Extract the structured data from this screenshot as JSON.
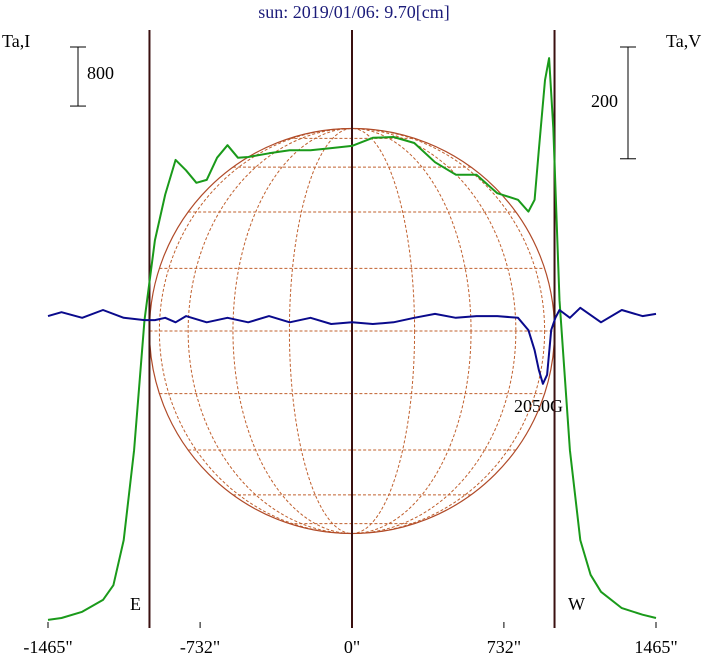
{
  "chart_data": {
    "type": "line",
    "title": "sun: 2019/01/06: 9.70[cm]",
    "ylabel": "Ta,I",
    "y2label": "Ta,V",
    "xlim": [
      -1465,
      1465
    ],
    "xticks": [
      {
        "value": -1465,
        "label": "-1465\""
      },
      {
        "value": -732,
        "label": "-732\""
      },
      {
        "value": 0,
        "label": "0\""
      },
      {
        "value": 732,
        "label": "732\""
      },
      {
        "value": 1465,
        "label": "1465\""
      }
    ],
    "ylim": [
      -100,
      8000
    ],
    "y2lim": [
      -560,
      510
    ],
    "scale_bars": [
      {
        "value": 800,
        "axis": "y"
      },
      {
        "value": 200,
        "axis": "y2"
      }
    ],
    "limbs": [
      {
        "x": -976,
        "label": "E"
      },
      {
        "x": 976,
        "label": "W"
      }
    ],
    "annotation": "2050G",
    "series": [
      {
        "color": "#1a9a1a",
        "axis": "y",
        "x": [
          -1465,
          -1400,
          -1300,
          -1200,
          -1150,
          -1100,
          -1050,
          -1000,
          -950,
          -900,
          -850,
          -800,
          -750,
          -700,
          -650,
          -600,
          -550,
          -500,
          -400,
          -300,
          -200,
          -100,
          0,
          100,
          200,
          300,
          400,
          500,
          600,
          700,
          800,
          850,
          880,
          900,
          930,
          950,
          970,
          1000,
          1050,
          1100,
          1150,
          1200,
          1300,
          1400,
          1465
        ],
        "values": [
          10,
          35,
          120,
          280,
          480,
          1090,
          2310,
          4070,
          5150,
          5770,
          6240,
          6100,
          5930,
          5970,
          6270,
          6440,
          6270,
          6280,
          6330,
          6370,
          6370,
          6400,
          6430,
          6540,
          6550,
          6470,
          6210,
          6040,
          6040,
          5790,
          5700,
          5540,
          5700,
          6370,
          7320,
          7620,
          6670,
          4340,
          2310,
          1090,
          620,
          390,
          170,
          80,
          35
        ]
      },
      {
        "color": "#0a0a8c",
        "axis": "y2",
        "x": [
          -1465,
          -1400,
          -1300,
          -1200,
          -1100,
          -1000,
          -950,
          -900,
          -850,
          -800,
          -700,
          -600,
          -500,
          -400,
          -300,
          -200,
          -100,
          0,
          100,
          200,
          300,
          400,
          500,
          600,
          700,
          800,
          850,
          880,
          900,
          920,
          940,
          960,
          980,
          1000,
          1050,
          1100,
          1200,
          1300,
          1400,
          1465
        ],
        "values": [
          -2,
          5,
          -5,
          9,
          -5,
          -9,
          -9,
          -5,
          -13,
          -2,
          -13,
          -5,
          -13,
          -2,
          -13,
          -5,
          -16,
          -13,
          -16,
          -13,
          -5,
          2,
          -5,
          -2,
          -2,
          -5,
          -27,
          -63,
          -98,
          -123,
          -107,
          -27,
          -5,
          9,
          -5,
          13,
          -13,
          9,
          -2,
          2
        ]
      }
    ]
  }
}
